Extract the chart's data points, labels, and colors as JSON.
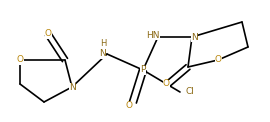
{
  "background_color": "#ffffff",
  "bond_color": "#000000",
  "atom_colors": {
    "O": "#b8860b",
    "N": "#8b6914",
    "P": "#8b6914",
    "Cl": "#8b6914",
    "C": "#000000"
  },
  "line_width": 1.2,
  "font_size": 6.5,
  "figsize": [
    2.7,
    1.22
  ],
  "dpi": 100,
  "xlim": [
    0,
    270
  ],
  "ylim": [
    0,
    122
  ]
}
